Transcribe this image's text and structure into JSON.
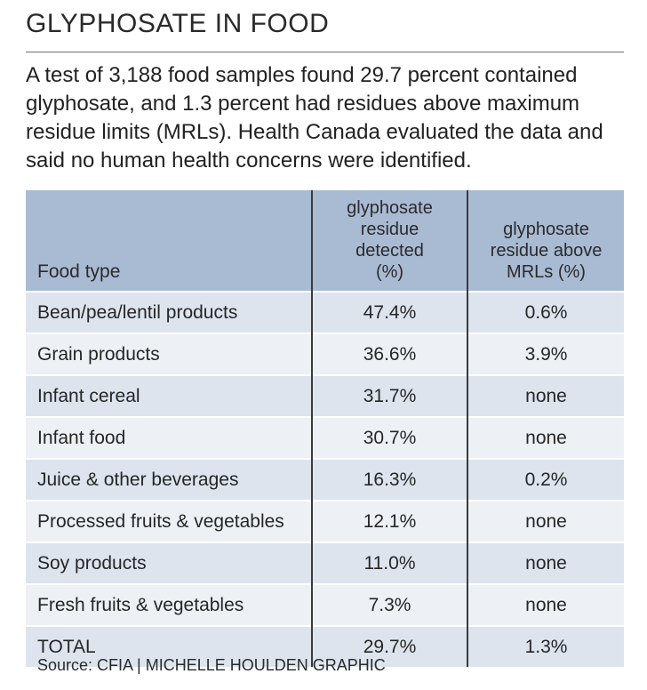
{
  "title": "GLYPHOSATE IN FOOD",
  "intro": "A test of 3,188 food samples found 29.7 percent contained glyphosate, and 1.3 percent had residues above maximum residue limits (MRLs). Health Canada evaluated the data and said no human health concerns were identified.",
  "table": {
    "headers": {
      "food_type": "Food type",
      "detected": "glyphosate residue detected (%)",
      "above_mrl": "glyphosate residue above MRLs (%)"
    },
    "rows": [
      {
        "food": "Bean/pea/lentil products",
        "detected": "47.4%",
        "above": "0.6%"
      },
      {
        "food": "Grain products",
        "detected": "36.6%",
        "above": "3.9%"
      },
      {
        "food": "Infant cereal",
        "detected": "31.7%",
        "above": "none"
      },
      {
        "food": "Infant food",
        "detected": "30.7%",
        "above": "none"
      },
      {
        "food": "Juice & other beverages",
        "detected": "16.3%",
        "above": "0.2%"
      },
      {
        "food": "Processed fruits & vegetables",
        "detected": "12.1%",
        "above": "none"
      },
      {
        "food": "Soy products",
        "detected": "11.0%",
        "above": "none"
      },
      {
        "food": "Fresh fruits & vegetables",
        "detected": "7.3%",
        "above": "none"
      },
      {
        "food": "TOTAL",
        "detected": "29.7%",
        "above": "1.3%"
      }
    ]
  },
  "source": "Source: CFIA | MICHELLE HOULDEN GRAPHIC",
  "colors": {
    "header_bg": "#a9bad3",
    "row_dark": "#dde4ee",
    "row_light": "#edf1f6"
  }
}
